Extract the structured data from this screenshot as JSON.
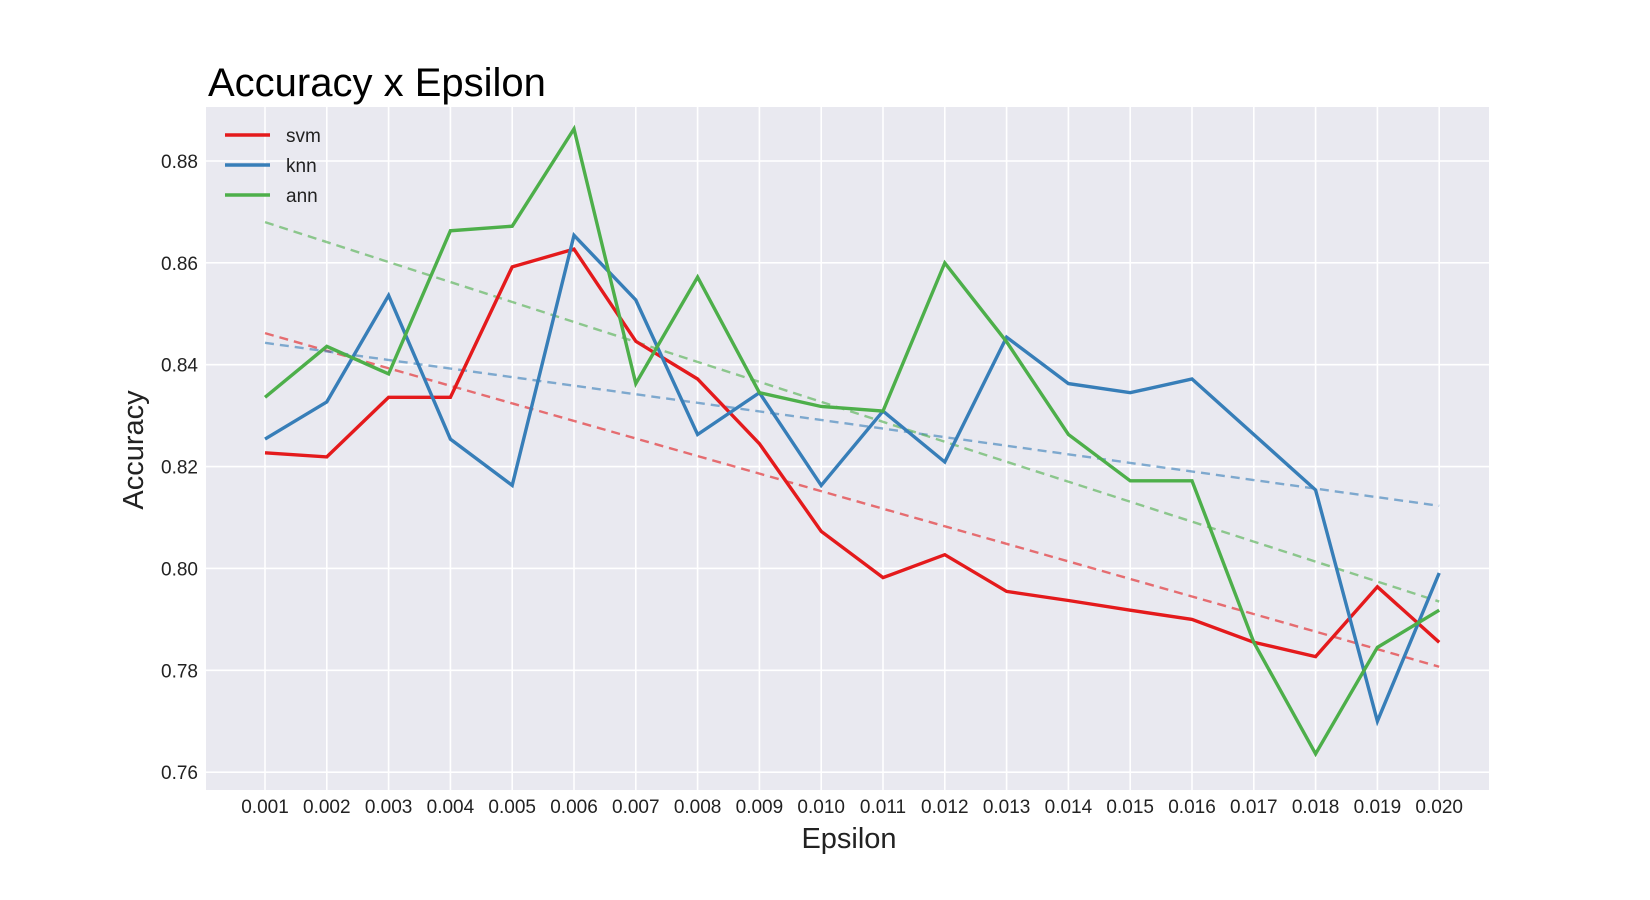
{
  "chart_data": {
    "type": "line",
    "title": "Accuracy x Epsilon",
    "xlabel": "Epsilon",
    "ylabel": "Accuracy",
    "categories": [
      "0.001",
      "0.002",
      "0.003",
      "0.004",
      "0.005",
      "0.006",
      "0.007",
      "0.008",
      "0.009",
      "0.010",
      "0.011",
      "0.012",
      "0.013",
      "0.014",
      "0.015",
      "0.016",
      "0.017",
      "0.018",
      "0.019",
      "0.020"
    ],
    "ylim": [
      0.7565,
      0.8906
    ],
    "yticks": [
      0.76,
      0.78,
      0.8,
      0.82,
      0.84,
      0.86,
      0.88
    ],
    "ytick_labels": [
      "0.76",
      "0.78",
      "0.80",
      "0.82",
      "0.84",
      "0.86",
      "0.88"
    ],
    "grid": true,
    "legend_position": "top-left",
    "background": "#e9e9f0",
    "series": [
      {
        "name": "svm",
        "color": "#e41a1c",
        "values": [
          0.8227,
          0.8219,
          0.8336,
          0.8336,
          0.8592,
          0.8627,
          0.8446,
          0.8372,
          0.8245,
          0.8073,
          0.7982,
          0.8027,
          0.7955,
          0.7937,
          0.7918,
          0.79,
          0.7855,
          0.7827,
          0.7964,
          0.7855
        ],
        "trend": [
          0.8462,
          0.7807
        ]
      },
      {
        "name": "knn",
        "color": "#377eb8",
        "values": [
          0.8254,
          0.8327,
          0.8536,
          0.8254,
          0.8163,
          0.8654,
          0.8527,
          0.8263,
          0.8345,
          0.8163,
          0.8309,
          0.8209,
          0.8454,
          0.8363,
          0.8345,
          0.8372,
          0.8263,
          0.8154,
          0.77,
          0.7991
        ],
        "trend": [
          0.8443,
          0.8123
        ]
      },
      {
        "name": "ann",
        "color": "#4daf4a",
        "values": [
          0.8336,
          0.8436,
          0.8382,
          0.8663,
          0.8672,
          0.8863,
          0.8363,
          0.8572,
          0.8345,
          0.8318,
          0.8309,
          0.86,
          0.8445,
          0.8263,
          0.8172,
          0.8172,
          0.7855,
          0.7636,
          0.7845,
          0.7918
        ],
        "trend": [
          0.868,
          0.7935
        ]
      }
    ]
  }
}
